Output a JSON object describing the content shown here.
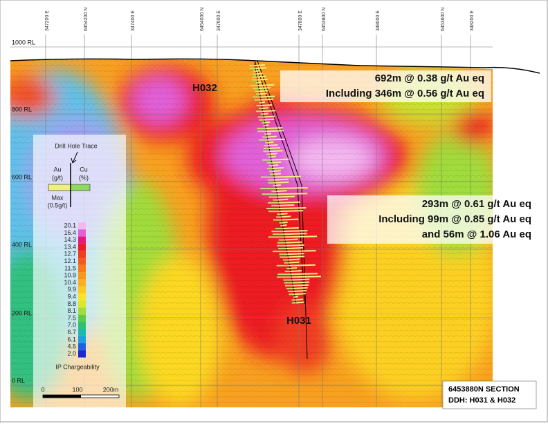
{
  "grid": {
    "eastings": [
      "347200 E",
      "6454200 N",
      "347400 E",
      "6454000 N",
      "347600 E",
      "347800 E",
      "6453800 N",
      "348000 E",
      "6453600 N",
      "348200 E"
    ],
    "levels": [
      "1000 RL",
      "800 RL",
      "600 RL",
      "400 RL",
      "200 RL",
      "0 RL"
    ]
  },
  "holes": [
    "H032",
    "H031"
  ],
  "intercepts": [
    {
      "lines": [
        "692m @ 0.38 g/t Au eq",
        "Including 346m @ 0.56 g/t Au eq"
      ]
    },
    {
      "lines": [
        "293m @ 0.61 g/t Au eq",
        "Including 99m @ 0.85 g/t Au eq",
        "and 56m @ 1.06 Au eq"
      ]
    }
  ],
  "legend": {
    "trace_title": "Drill Hole Trace",
    "au": "Au",
    "au_unit": "(g/t)",
    "cu": "Cu",
    "cu_unit": "(%)",
    "max": "Max",
    "max_unit": "(0.5g/t)",
    "scale": [
      {
        "label": "20.1",
        "color": "#f4b8f0"
      },
      {
        "label": "16.4",
        "color": "#e060d8"
      },
      {
        "label": "14.3",
        "color": "#e8187a"
      },
      {
        "label": "13.4",
        "color": "#ec1c24"
      },
      {
        "label": "12.7",
        "color": "#f03c20"
      },
      {
        "label": "12.1",
        "color": "#f45a1c"
      },
      {
        "label": "11.5",
        "color": "#f67a1c"
      },
      {
        "label": "10.9",
        "color": "#f8961e"
      },
      {
        "label": "10.4",
        "color": "#fab020"
      },
      {
        "label": "9.9",
        "color": "#fcc824"
      },
      {
        "label": "9.4",
        "color": "#fce22a"
      },
      {
        "label": "8.8",
        "color": "#d8e82e"
      },
      {
        "label": "8.1",
        "color": "#a0dc3a"
      },
      {
        "label": "7.5",
        "color": "#5ccc46"
      },
      {
        "label": "7.0",
        "color": "#2ec070"
      },
      {
        "label": "6.7",
        "color": "#1eb8b0"
      },
      {
        "label": "6.1",
        "color": "#1ea0e0"
      },
      {
        "label": "4.5",
        "color": "#2060e0"
      },
      {
        "label": "2.0",
        "color": "#1a2ad0"
      }
    ],
    "scale_title": "IP Chargeability"
  },
  "scalebar": [
    "0",
    "100",
    "200m"
  ],
  "section": [
    "6453880N SECTION",
    "DDH: H031 & H032"
  ]
}
